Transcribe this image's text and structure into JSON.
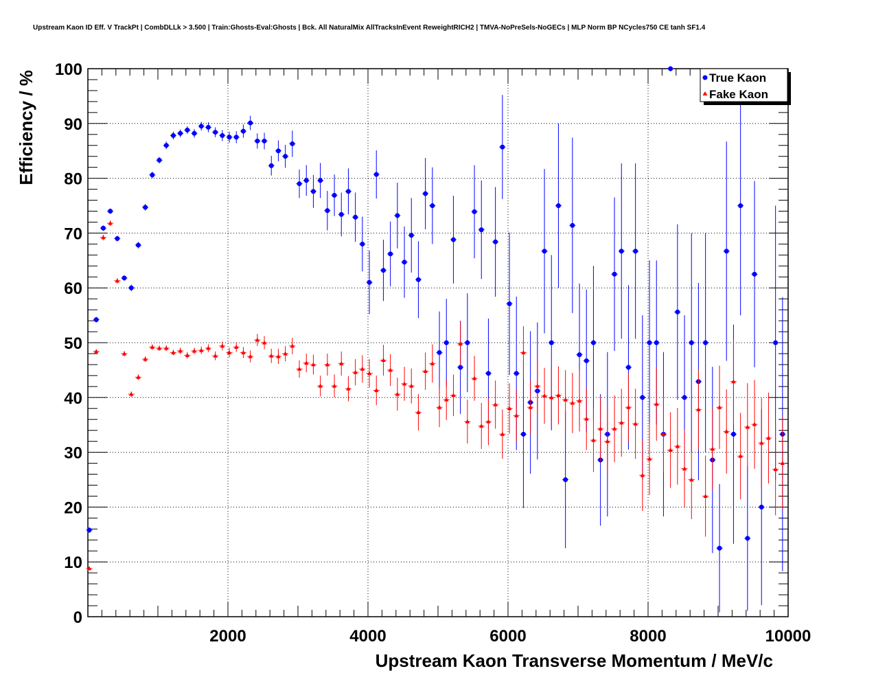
{
  "chart_data": {
    "type": "scatter",
    "title": "Upstream Kaon ID Eff. V TrackPt | CombDLLk > 3.500 | Train:Ghosts-Eval:Ghosts | Bck. All NaturalMix AllTracksInEvent ReweightRICH2 | TMVA-NoPreSels-NoGECs | MLP Norm BP NCycles750 CE tanh SF1.4",
    "xlabel": "Upstream Kaon Transverse Momentum / MeV/c",
    "ylabel": "Efficiency / %",
    "xlim": [
      0,
      10000
    ],
    "ylim": [
      0,
      100
    ],
    "x_ticks": [
      {
        "value": 2000,
        "label": "2000"
      },
      {
        "value": 4000,
        "label": "4000"
      },
      {
        "value": 6000,
        "label": "6000"
      },
      {
        "value": 8000,
        "label": "8000"
      },
      {
        "value": 10000,
        "label": "10000"
      }
    ],
    "y_ticks": [
      {
        "value": 0,
        "label": "0"
      },
      {
        "value": 10,
        "label": "10"
      },
      {
        "value": 20,
        "label": "20"
      },
      {
        "value": 30,
        "label": "30"
      },
      {
        "value": 40,
        "label": "40"
      },
      {
        "value": 50,
        "label": "50"
      },
      {
        "value": 60,
        "label": "60"
      },
      {
        "value": 70,
        "label": "70"
      },
      {
        "value": 80,
        "label": "80"
      },
      {
        "value": 90,
        "label": "90"
      },
      {
        "value": 100,
        "label": "100"
      }
    ],
    "grid": true,
    "legend_position": "top-right",
    "series": [
      {
        "name": "True Kaon",
        "color": "#0000ff",
        "marker": "circle",
        "points": [
          [
            20,
            15.8,
            0.5
          ],
          [
            120,
            54.2,
            0.5
          ],
          [
            220,
            70.9,
            0.5
          ],
          [
            320,
            74.0,
            0.5
          ],
          [
            420,
            69.0,
            0.5
          ],
          [
            520,
            61.8,
            0.5
          ],
          [
            620,
            60.0,
            0.6
          ],
          [
            720,
            67.8,
            0.6
          ],
          [
            820,
            74.7,
            0.6
          ],
          [
            920,
            80.6,
            0.6
          ],
          [
            1020,
            83.3,
            0.6
          ],
          [
            1120,
            86.0,
            0.7
          ],
          [
            1220,
            87.8,
            0.7
          ],
          [
            1320,
            88.2,
            0.7
          ],
          [
            1420,
            88.8,
            0.7
          ],
          [
            1520,
            88.2,
            0.8
          ],
          [
            1620,
            89.5,
            0.8
          ],
          [
            1720,
            89.3,
            0.9
          ],
          [
            1820,
            88.4,
            0.9
          ],
          [
            1920,
            87.8,
            1.0
          ],
          [
            2020,
            87.5,
            1.0
          ],
          [
            2120,
            87.5,
            1.1
          ],
          [
            2220,
            88.6,
            1.2
          ],
          [
            2320,
            90.1,
            1.3
          ],
          [
            2420,
            86.8,
            1.4
          ],
          [
            2520,
            86.8,
            1.5
          ],
          [
            2620,
            82.3,
            1.8
          ],
          [
            2720,
            85.0,
            1.9
          ],
          [
            2820,
            84.0,
            2.1
          ],
          [
            2920,
            86.3,
            2.4
          ],
          [
            3020,
            79.0,
            2.6
          ],
          [
            3120,
            79.6,
            2.8
          ],
          [
            3220,
            77.6,
            3.0
          ],
          [
            3320,
            79.6,
            3.2
          ],
          [
            3420,
            74.1,
            3.6
          ],
          [
            3520,
            76.9,
            3.8
          ],
          [
            3620,
            73.4,
            4.0
          ],
          [
            3720,
            77.6,
            4.2
          ],
          [
            3820,
            72.9,
            4.5
          ],
          [
            3920,
            68.0,
            5.0
          ],
          [
            4020,
            61.0,
            5.8
          ],
          [
            4120,
            80.7,
            4.4
          ],
          [
            4220,
            63.2,
            5.6
          ],
          [
            4320,
            66.2,
            5.9
          ],
          [
            4420,
            73.2,
            6.0
          ],
          [
            4520,
            64.7,
            6.5
          ],
          [
            4620,
            69.6,
            6.8
          ],
          [
            4720,
            61.5,
            7.0
          ],
          [
            4820,
            77.2,
            6.5
          ],
          [
            4920,
            75.0,
            7.0
          ],
          [
            5020,
            48.2,
            7.5
          ],
          [
            5120,
            50.0,
            8.0
          ],
          [
            5220,
            68.8,
            8.0
          ],
          [
            5320,
            45.5,
            8.5
          ],
          [
            5420,
            50.0,
            9.0
          ],
          [
            5520,
            73.9,
            8.5
          ],
          [
            5620,
            70.6,
            9.0
          ],
          [
            5720,
            44.4,
            10.0
          ],
          [
            5820,
            68.4,
            10.0
          ],
          [
            5920,
            85.7,
            9.5
          ],
          [
            6020,
            57.1,
            13.0
          ],
          [
            6120,
            44.4,
            14.0
          ],
          [
            6220,
            33.3,
            13.5
          ],
          [
            6320,
            39.1,
            13.0
          ],
          [
            6420,
            41.2,
            12.5
          ],
          [
            6520,
            66.7,
            15.0
          ],
          [
            6620,
            50.0,
            16.0
          ],
          [
            6720,
            75.0,
            15.0
          ],
          [
            6820,
            25.0,
            12.5
          ],
          [
            6920,
            71.4,
            16.0
          ],
          [
            7020,
            47.8,
            13.0
          ],
          [
            7120,
            46.7,
            13.0
          ],
          [
            7220,
            50.0,
            14.0
          ],
          [
            7320,
            28.6,
            12.0
          ],
          [
            7420,
            33.3,
            15.0
          ],
          [
            7520,
            62.5,
            14.0
          ],
          [
            7620,
            66.7,
            16.0
          ],
          [
            7720,
            45.5,
            15.0
          ],
          [
            7820,
            66.7,
            16.0
          ],
          [
            7920,
            40.0,
            15.0
          ],
          [
            8020,
            50.0,
            15.0
          ],
          [
            8120,
            50.0,
            15.0
          ],
          [
            8220,
            33.3,
            15.0
          ],
          [
            8320,
            100.0,
            0.5
          ],
          [
            8420,
            55.6,
            16.0
          ],
          [
            8520,
            40.0,
            15.0
          ],
          [
            8620,
            50.0,
            20.0
          ],
          [
            8720,
            42.9,
            18.0
          ],
          [
            8820,
            50.0,
            20.0
          ],
          [
            8920,
            28.6,
            17.0
          ],
          [
            9020,
            12.5,
            11.7
          ],
          [
            9120,
            66.7,
            20.0
          ],
          [
            9220,
            33.3,
            20.0
          ],
          [
            9320,
            75.0,
            20.0
          ],
          [
            9420,
            14.3,
            13.2
          ],
          [
            9520,
            62.5,
            17.0
          ],
          [
            9620,
            20.0,
            17.9
          ],
          [
            9820,
            50.0,
            25.0
          ],
          [
            9920,
            33.3,
            25.0
          ]
        ]
      },
      {
        "name": "Fake Kaon",
        "color": "#ff0000",
        "marker": "triangle",
        "points": [
          [
            20,
            8.8,
            0.3
          ],
          [
            120,
            48.4,
            0.4
          ],
          [
            220,
            69.2,
            0.5
          ],
          [
            320,
            71.8,
            0.5
          ],
          [
            420,
            61.3,
            0.5
          ],
          [
            520,
            48.0,
            0.5
          ],
          [
            620,
            40.6,
            0.5
          ],
          [
            720,
            43.7,
            0.5
          ],
          [
            820,
            47.0,
            0.5
          ],
          [
            920,
            49.2,
            0.5
          ],
          [
            1020,
            49.0,
            0.5
          ],
          [
            1120,
            49.0,
            0.5
          ],
          [
            1220,
            48.2,
            0.5
          ],
          [
            1320,
            48.5,
            0.6
          ],
          [
            1420,
            47.7,
            0.6
          ],
          [
            1520,
            48.5,
            0.6
          ],
          [
            1620,
            48.6,
            0.7
          ],
          [
            1720,
            49.0,
            0.7
          ],
          [
            1820,
            47.6,
            0.8
          ],
          [
            1920,
            49.4,
            0.8
          ],
          [
            2020,
            48.2,
            0.9
          ],
          [
            2120,
            49.2,
            0.9
          ],
          [
            2220,
            48.2,
            1.0
          ],
          [
            2320,
            47.5,
            1.1
          ],
          [
            2420,
            50.5,
            1.1
          ],
          [
            2520,
            50.0,
            1.2
          ],
          [
            2620,
            47.6,
            1.3
          ],
          [
            2720,
            47.5,
            1.4
          ],
          [
            2820,
            48.0,
            1.4
          ],
          [
            2920,
            49.4,
            1.5
          ],
          [
            3020,
            45.2,
            1.6
          ],
          [
            3120,
            46.3,
            1.7
          ],
          [
            3220,
            46.0,
            1.8
          ],
          [
            3320,
            42.1,
            1.9
          ],
          [
            3420,
            46.0,
            2.0
          ],
          [
            3520,
            42.1,
            2.1
          ],
          [
            3620,
            46.2,
            2.2
          ],
          [
            3720,
            41.6,
            2.3
          ],
          [
            3820,
            44.6,
            2.4
          ],
          [
            3920,
            45.2,
            2.5
          ],
          [
            4020,
            44.4,
            2.6
          ],
          [
            4120,
            41.3,
            2.7
          ],
          [
            4220,
            46.8,
            2.8
          ],
          [
            4320,
            45.0,
            2.9
          ],
          [
            4420,
            40.6,
            3.0
          ],
          [
            4520,
            42.5,
            3.1
          ],
          [
            4620,
            42.1,
            3.2
          ],
          [
            4720,
            37.3,
            3.3
          ],
          [
            4820,
            44.8,
            3.4
          ],
          [
            4920,
            46.2,
            3.5
          ],
          [
            5020,
            38.2,
            3.6
          ],
          [
            5120,
            39.6,
            3.7
          ],
          [
            5220,
            40.4,
            3.8
          ],
          [
            5320,
            49.8,
            4.0
          ],
          [
            5420,
            35.6,
            4.0
          ],
          [
            5520,
            43.5,
            4.1
          ],
          [
            5620,
            34.8,
            4.2
          ],
          [
            5720,
            35.6,
            4.3
          ],
          [
            5820,
            38.7,
            4.4
          ],
          [
            5920,
            33.3,
            4.5
          ],
          [
            6020,
            38.0,
            4.6
          ],
          [
            6120,
            36.7,
            4.7
          ],
          [
            6220,
            48.2,
            4.8
          ],
          [
            6320,
            38.2,
            4.9
          ],
          [
            6420,
            42.1,
            5.0
          ],
          [
            6520,
            40.3,
            5.1
          ],
          [
            6620,
            40.0,
            5.2
          ],
          [
            6720,
            40.4,
            5.3
          ],
          [
            6820,
            39.6,
            5.4
          ],
          [
            6920,
            39.0,
            5.5
          ],
          [
            7020,
            39.4,
            5.6
          ],
          [
            7120,
            36.1,
            5.7
          ],
          [
            7220,
            32.2,
            5.8
          ],
          [
            7320,
            34.3,
            5.9
          ],
          [
            7420,
            32.0,
            6.0
          ],
          [
            7520,
            34.3,
            6.1
          ],
          [
            7620,
            35.4,
            6.2
          ],
          [
            7720,
            38.2,
            6.3
          ],
          [
            7820,
            35.2,
            6.4
          ],
          [
            7920,
            25.8,
            6.5
          ],
          [
            8020,
            28.8,
            6.6
          ],
          [
            8120,
            38.8,
            6.7
          ],
          [
            8220,
            33.3,
            6.8
          ],
          [
            8320,
            30.4,
            6.9
          ],
          [
            8420,
            31.1,
            7.0
          ],
          [
            8520,
            27.0,
            7.1
          ],
          [
            8620,
            25.0,
            7.2
          ],
          [
            8720,
            37.8,
            7.3
          ],
          [
            8820,
            22.0,
            7.4
          ],
          [
            8920,
            30.6,
            7.5
          ],
          [
            9020,
            38.2,
            7.6
          ],
          [
            9120,
            33.8,
            7.7
          ],
          [
            9220,
            42.9,
            7.8
          ],
          [
            9320,
            29.3,
            7.9
          ],
          [
            9420,
            34.6,
            8.0
          ],
          [
            9520,
            35.1,
            8.1
          ],
          [
            9620,
            31.7,
            8.2
          ],
          [
            9720,
            32.6,
            8.3
          ],
          [
            9820,
            26.9,
            8.4
          ],
          [
            9920,
            28.0,
            8.5
          ]
        ]
      }
    ]
  }
}
